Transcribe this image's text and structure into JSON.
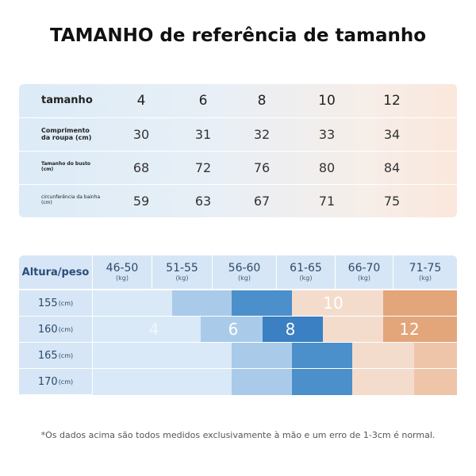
{
  "title": "TAMANHO de referência de tamanho",
  "size_table": {
    "header": {
      "label": "tamanho",
      "sizes": [
        "4",
        "6",
        "8",
        "10",
        "12"
      ]
    },
    "rows": [
      {
        "label": "Comprimento da roupa (cm)",
        "values": [
          "30",
          "31",
          "32",
          "33",
          "34"
        ]
      },
      {
        "label": "Tamanho do busto (cm)",
        "values": [
          "68",
          "72",
          "76",
          "80",
          "84"
        ]
      },
      {
        "label": "circunferência da bainha (cm)",
        "values": [
          "59",
          "63",
          "67",
          "71",
          "75"
        ]
      }
    ]
  },
  "fit_table": {
    "corner": "Altura/peso",
    "unit_kg": "(kg)",
    "unit_cm": "(cm)",
    "weights": [
      "46-50",
      "51-55",
      "56-60",
      "61-65",
      "66-70",
      "71-75"
    ],
    "heights": [
      "155",
      "160",
      "165",
      "170"
    ],
    "size_labels": {
      "row155": "10",
      "row160_a": "4",
      "row160_b": "6",
      "row160_c": "8",
      "row160_d": "12"
    },
    "colors": {
      "pale_blue": "#d9e9f7",
      "light_blue": "#a9cbe9",
      "mid_blue": "#4b8fcb",
      "dark_blue": "#3a80c2",
      "pale_peach": "#f4dccd",
      "light_peach": "#efc5aa",
      "orange": "#e3a57a"
    }
  },
  "footnote": "*Os dados acima são todos medidos exclusivamente à mão e um erro de 1-3cm é normal."
}
